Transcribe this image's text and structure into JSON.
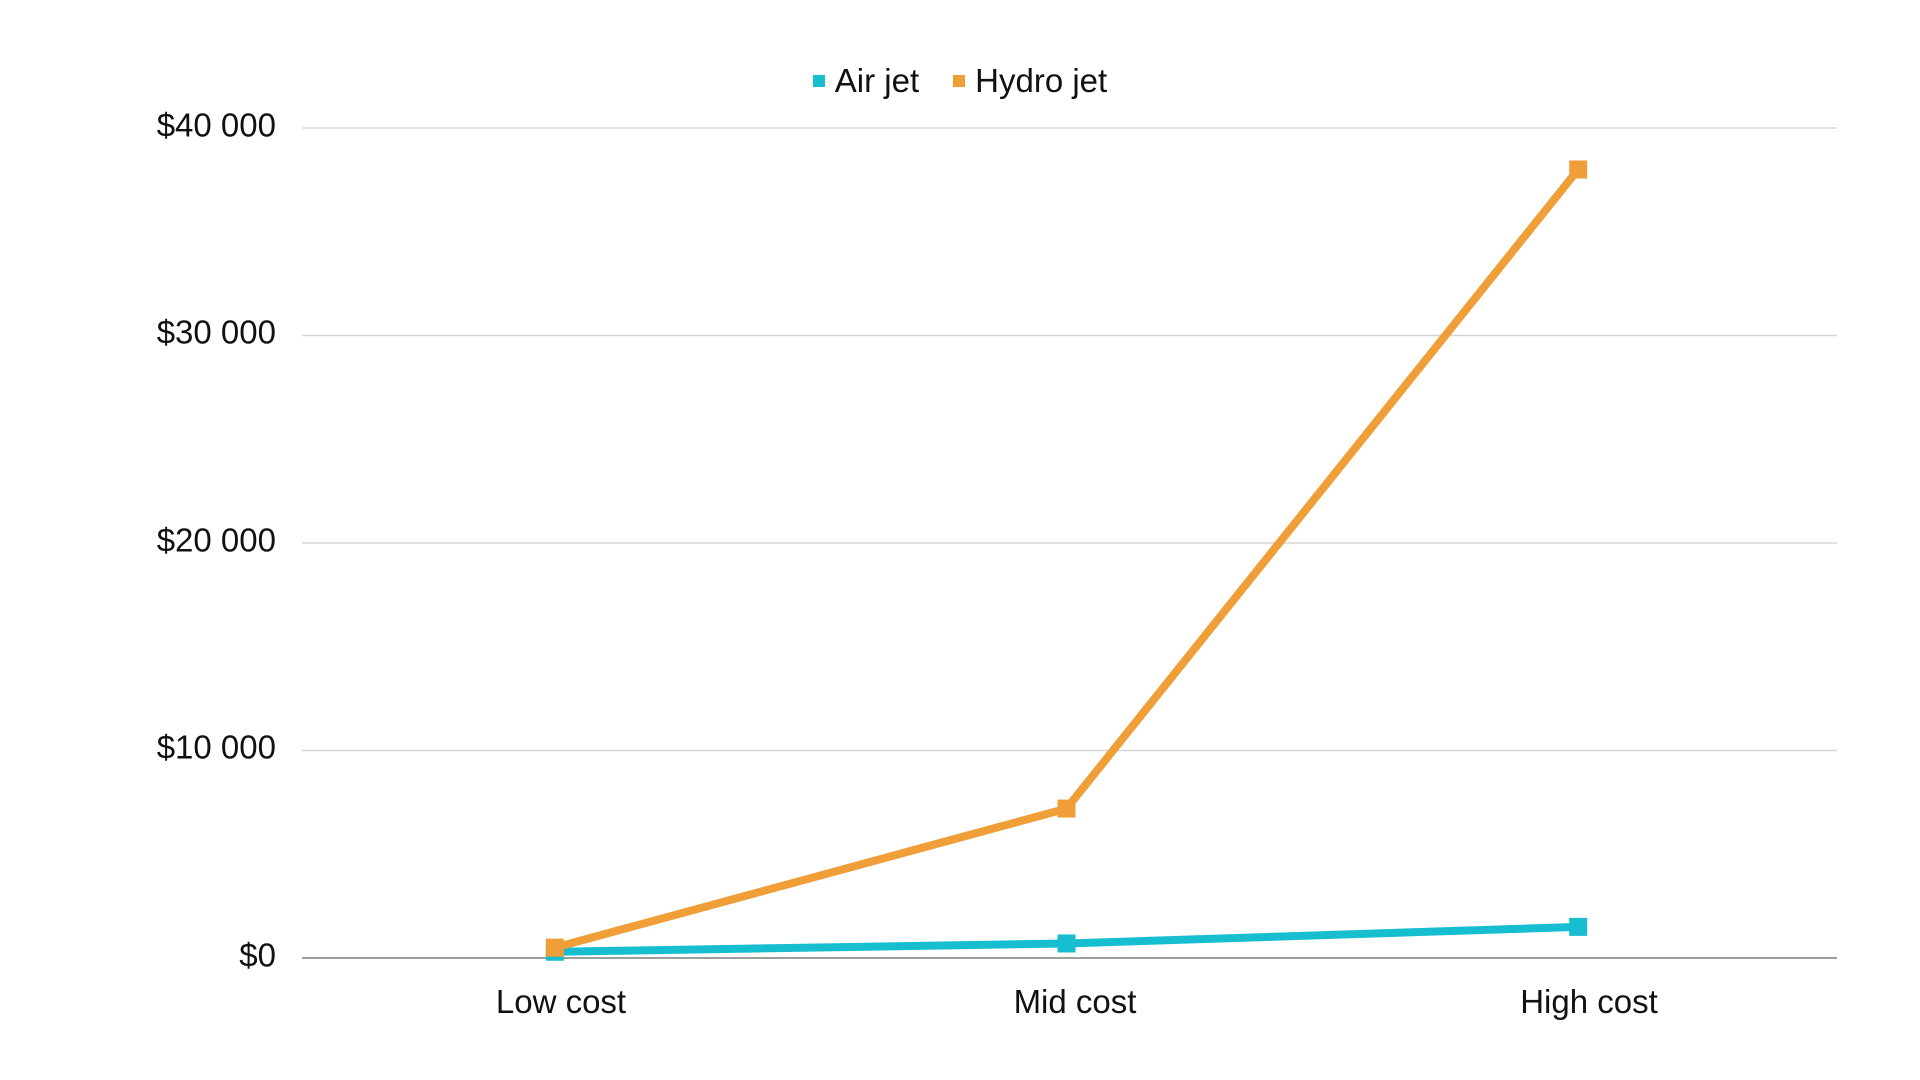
{
  "legend": {
    "items": [
      {
        "label": "Air jet",
        "color": "#17BECF"
      },
      {
        "label": "Hydro jet",
        "color": "#F09E38"
      }
    ]
  },
  "axes": {
    "y_ticks": [
      "$0",
      "$10 000",
      "$20 000",
      "$30 000",
      "$40 000"
    ],
    "x_ticks": [
      "Low cost",
      "Mid cost",
      "High cost"
    ]
  },
  "chart_data": {
    "type": "line",
    "title": "",
    "xlabel": "",
    "ylabel": "",
    "categories": [
      "Low cost",
      "Mid cost",
      "High cost"
    ],
    "series": [
      {
        "name": "Air jet",
        "color": "#17BECF",
        "values": [
          300,
          700,
          1500
        ]
      },
      {
        "name": "Hydro jet",
        "color": "#F09E38",
        "values": [
          500,
          7200,
          38000
        ]
      }
    ],
    "ylim": [
      0,
      40000
    ],
    "y_tick_values": [
      0,
      10000,
      20000,
      30000,
      40000
    ],
    "y_tick_labels": [
      "$0",
      "$10 000",
      "$20 000",
      "$30 000",
      "$40 000"
    ],
    "grid": true,
    "legend_position": "top",
    "markers": "square"
  }
}
